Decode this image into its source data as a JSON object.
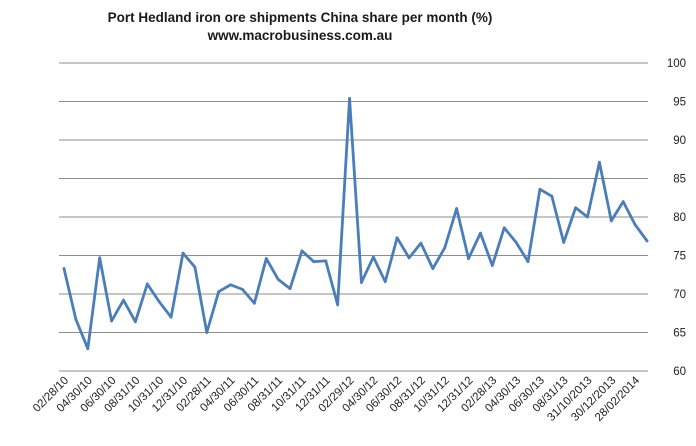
{
  "chart_data": {
    "type": "line",
    "title": "Port Hedland iron ore shipments China share per month (%)",
    "subtitle": "www.macrobusiness.com.au",
    "xlabel": "",
    "ylabel": "",
    "ylim": [
      60,
      100
    ],
    "y_ticks": [
      60,
      65,
      70,
      75,
      80,
      85,
      90,
      95,
      100
    ],
    "y_axis_position": "right",
    "grid": true,
    "legend": "none",
    "line_color": "#4a7ebb",
    "x_tick_labels": [
      "02/28/10",
      "04/30/10",
      "06/30/10",
      "08/31/10",
      "10/31/10",
      "12/31/10",
      "02/28/11",
      "04/30/11",
      "06/30/11",
      "08/31/11",
      "10/31/11",
      "12/31/11",
      "02/29/12",
      "04/30/12",
      "06/30/12",
      "08/31/12",
      "10/31/12",
      "12/31/12",
      "02/28/13",
      "04/30/13",
      "06/30/13",
      "08/31/13",
      "31/10/2013",
      "30/12/2013",
      "28/02/2014"
    ],
    "series": [
      {
        "values": [
          73.3,
          66.7,
          62.9,
          74.7,
          66.5,
          69.2,
          66.4,
          71.3,
          69.0,
          67.0,
          75.3,
          73.5,
          65.0,
          70.3,
          71.2,
          70.6,
          68.8,
          74.6,
          71.9,
          70.7,
          75.6,
          74.2,
          74.3,
          68.6,
          95.4,
          71.5,
          74.8,
          71.6,
          77.3,
          74.7,
          76.6,
          73.3,
          76.0,
          81.1,
          74.6,
          77.9,
          73.7,
          78.6,
          76.7,
          74.2,
          83.6,
          82.7,
          76.7,
          81.2,
          80.0,
          87.1,
          79.5,
          82.0,
          79.0,
          76.9
        ]
      }
    ]
  }
}
